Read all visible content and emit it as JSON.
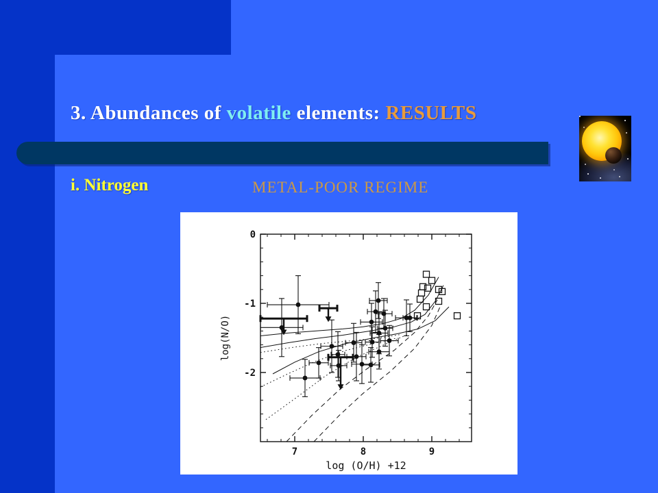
{
  "slide": {
    "title": {
      "part1": "3. Abundances of ",
      "part2": "volatile",
      "part3": " elements: ",
      "part4": "RESULTS"
    },
    "section_label": "i. Nitrogen",
    "regime_label": "METAL-POOR REGIME",
    "decor": {
      "star_image": "sun-with-transiting-planet"
    }
  },
  "colors": {
    "background_dark": "#0533c8",
    "panel_blue": "#3366ff",
    "divider_bar": "#003763",
    "title_main": "#ffffff",
    "title_highlight": "#7feef2",
    "title_results": "#e89b3c",
    "section_yellow": "#ffff33",
    "regime_orange": "#cc9944",
    "plot_ink": "#111111",
    "plot_background": "#ffffff"
  },
  "chart_data": {
    "type": "scatter",
    "title": "",
    "xlabel": "log (O/H) +12",
    "ylabel": "log(N/O)",
    "xlim": [
      6.5,
      9.58
    ],
    "ylim": [
      -3,
      0
    ],
    "xticks": [
      7,
      8,
      9
    ],
    "yticks": [
      0,
      -1,
      -2,
      -3
    ],
    "minor_tick_step": 0.2,
    "grid": false,
    "legend": "none",
    "series": [
      {
        "name": "measurements",
        "marker": "filled-circle-with-error-bars",
        "points": [
          [
            6.81,
            -1.35,
            0.31,
            0.42
          ],
          [
            7.05,
            -1.02,
            0.45,
            0.42
          ],
          [
            7.15,
            -2.08,
            0.22,
            0.27
          ],
          [
            7.35,
            -1.86,
            0.14,
            0.22
          ],
          [
            7.54,
            -1.62,
            0.16,
            0.38
          ],
          [
            7.63,
            -1.74,
            0.1,
            0.33
          ],
          [
            7.64,
            -1.9,
            0.12,
            0.22
          ],
          [
            7.86,
            -1.57,
            0.12,
            0.28
          ],
          [
            7.9,
            -1.77,
            0.14,
            0.35
          ],
          [
            7.98,
            -1.88,
            0.15,
            0.28
          ],
          [
            8.11,
            -1.89,
            0.13,
            0.25
          ],
          [
            8.12,
            -1.27,
            0.16,
            0.27
          ],
          [
            8.13,
            -1.56,
            0.1,
            0.22
          ],
          [
            8.18,
            -1.12,
            0.12,
            0.3
          ],
          [
            8.22,
            -0.96,
            0.13,
            0.26
          ],
          [
            8.23,
            -1.43,
            0.13,
            0.3
          ],
          [
            8.23,
            -1.7,
            0.15,
            0.25
          ],
          [
            8.3,
            -1.15,
            0.12,
            0.22
          ],
          [
            8.32,
            -1.36,
            0.11,
            0.26
          ],
          [
            8.38,
            -1.54,
            0.13,
            0.22
          ],
          [
            8.63,
            -1.21,
            0.16,
            0.26
          ],
          [
            8.68,
            -1.21,
            0.1,
            0.2
          ]
        ]
      },
      {
        "name": "open-squares",
        "marker": "open-square",
        "points": [
          [
            8.92,
            -0.58
          ],
          [
            9.0,
            -0.67
          ],
          [
            8.87,
            -0.76
          ],
          [
            8.94,
            -0.78
          ],
          [
            9.1,
            -0.8
          ],
          [
            9.15,
            -0.83
          ],
          [
            8.85,
            -0.85
          ],
          [
            8.83,
            -0.94
          ],
          [
            9.1,
            -0.97
          ],
          [
            8.92,
            -1.05
          ],
          [
            8.79,
            -1.18
          ],
          [
            9.37,
            -1.18
          ]
        ]
      },
      {
        "name": "upper-limits",
        "marker": "bold-bar-with-down-arrow",
        "points": [
          [
            6.84,
            -1.22,
            0.34,
            0.22
          ],
          [
            7.49,
            -1.07,
            0.13,
            0.18
          ],
          [
            7.67,
            -1.78,
            0.18,
            0.45
          ]
        ]
      }
    ],
    "curves": [
      {
        "style": "solid",
        "points": [
          [
            6.5,
            -1.47
          ],
          [
            6.9,
            -1.43
          ],
          [
            7.3,
            -1.4
          ],
          [
            7.7,
            -1.37
          ],
          [
            8.0,
            -1.34
          ],
          [
            8.3,
            -1.29
          ],
          [
            8.55,
            -1.22
          ],
          [
            8.75,
            -1.1
          ],
          [
            8.95,
            -0.88
          ],
          [
            9.1,
            -0.62
          ]
        ]
      },
      {
        "style": "solid",
        "points": [
          [
            6.5,
            -1.64
          ],
          [
            6.9,
            -1.57
          ],
          [
            7.3,
            -1.51
          ],
          [
            7.7,
            -1.46
          ],
          [
            8.1,
            -1.4
          ],
          [
            8.45,
            -1.34
          ],
          [
            8.7,
            -1.27
          ],
          [
            8.9,
            -1.16
          ],
          [
            9.05,
            -0.97
          ],
          [
            9.17,
            -0.74
          ]
        ]
      },
      {
        "style": "solid",
        "points": [
          [
            6.68,
            -2.02
          ],
          [
            7.0,
            -1.85
          ],
          [
            7.35,
            -1.7
          ],
          [
            7.75,
            -1.58
          ],
          [
            8.15,
            -1.5
          ],
          [
            8.5,
            -1.44
          ],
          [
            8.8,
            -1.37
          ],
          [
            9.05,
            -1.25
          ],
          [
            9.25,
            -1.05
          ]
        ]
      },
      {
        "style": "dotted",
        "points": [
          [
            6.5,
            -1.71
          ],
          [
            6.95,
            -1.64
          ],
          [
            7.4,
            -1.58
          ],
          [
            7.85,
            -1.54
          ],
          [
            8.25,
            -1.5
          ],
          [
            8.55,
            -1.45
          ]
        ]
      },
      {
        "style": "dotted",
        "points": [
          [
            6.5,
            -2.21
          ],
          [
            6.9,
            -2.02
          ],
          [
            7.3,
            -1.84
          ],
          [
            7.75,
            -1.68
          ],
          [
            8.15,
            -1.58
          ],
          [
            8.5,
            -1.5
          ]
        ]
      },
      {
        "style": "dotted",
        "points": [
          [
            6.58,
            -2.68
          ],
          [
            7.0,
            -2.38
          ],
          [
            7.45,
            -2.05
          ],
          [
            7.9,
            -1.78
          ],
          [
            8.3,
            -1.6
          ],
          [
            8.65,
            -1.45
          ]
        ]
      },
      {
        "style": "dashed",
        "points": [
          [
            6.88,
            -3.0
          ],
          [
            7.25,
            -2.62
          ],
          [
            7.65,
            -2.25
          ],
          [
            8.05,
            -1.95
          ],
          [
            8.45,
            -1.68
          ],
          [
            8.75,
            -1.42
          ],
          [
            8.95,
            -1.18
          ],
          [
            9.08,
            -0.95
          ]
        ]
      },
      {
        "style": "dashed",
        "points": [
          [
            7.28,
            -3.0
          ],
          [
            7.65,
            -2.62
          ],
          [
            8.0,
            -2.3
          ],
          [
            8.4,
            -1.98
          ],
          [
            8.75,
            -1.65
          ],
          [
            9.0,
            -1.32
          ],
          [
            9.12,
            -1.05
          ]
        ]
      }
    ]
  }
}
